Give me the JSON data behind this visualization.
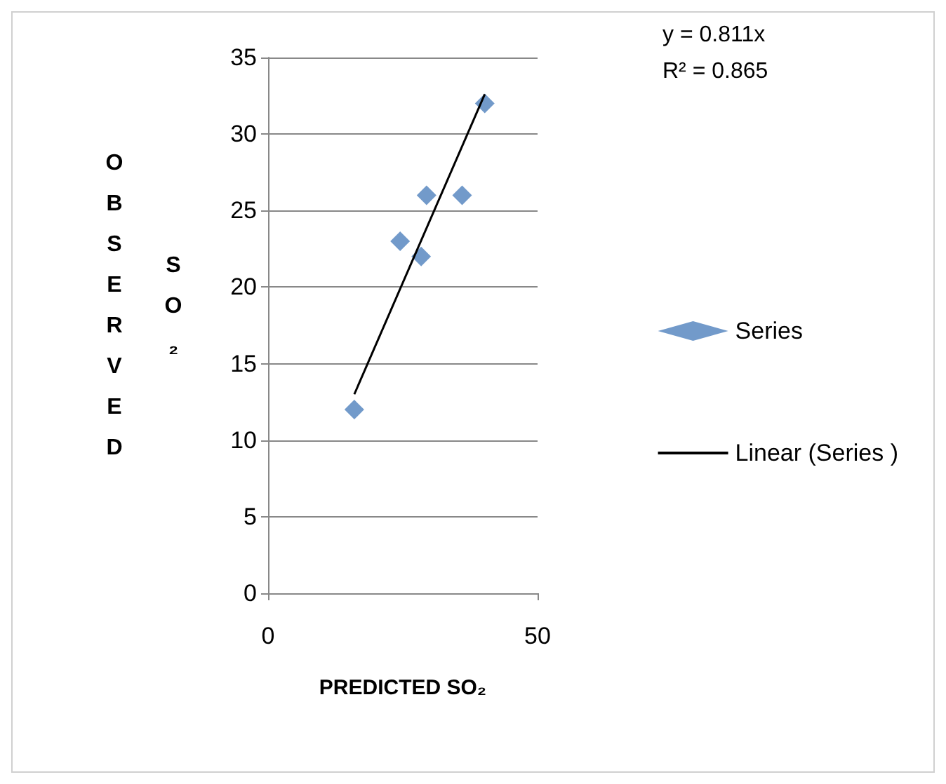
{
  "chart_data": {
    "type": "scatter",
    "xlabel": "PREDICTED SO₂",
    "ylabel": "OBSERVED SO₂",
    "xlim": [
      0,
      50
    ],
    "xticks": [
      0,
      50
    ],
    "ylim": [
      0,
      35
    ],
    "yticks": [
      0,
      5,
      10,
      15,
      20,
      25,
      30,
      35
    ],
    "grid": "y",
    "legend": "right",
    "annotations": [
      "y = 0.811x",
      "R² = 0.865"
    ],
    "series": [
      {
        "name": "Series",
        "color": "#4f81bd",
        "marker": "diamond",
        "x": [
          16,
          24.5,
          28.4,
          29.4,
          36,
          40.2
        ],
        "values": [
          12,
          23,
          22,
          26,
          26,
          32
        ]
      },
      {
        "name": "Linear (Series )",
        "type": "line",
        "color": "#000000",
        "line_style": "solid",
        "marker": "none",
        "x": [
          16,
          40.2
        ],
        "values": [
          13,
          32.6
        ]
      }
    ]
  }
}
